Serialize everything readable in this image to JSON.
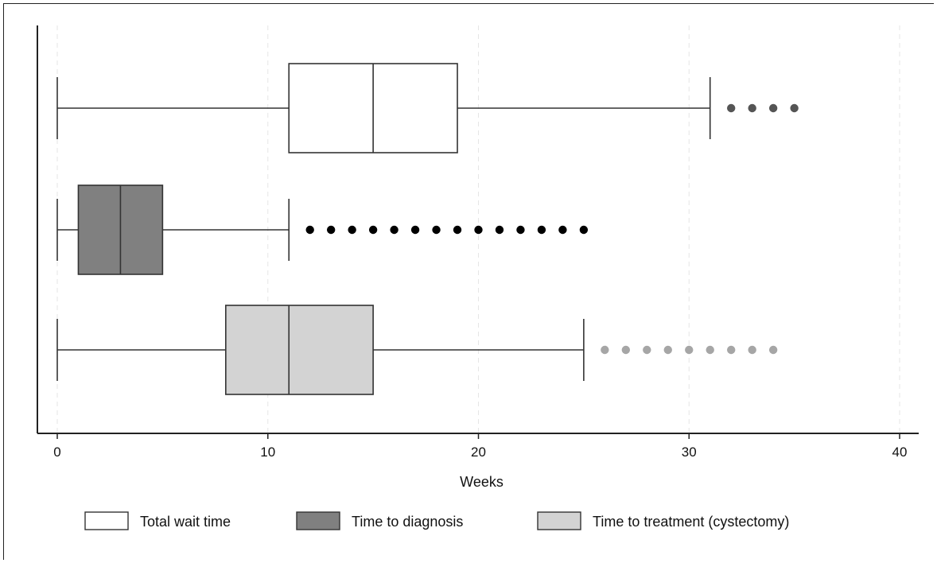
{
  "chart_data": {
    "type": "boxplot",
    "orientation": "horizontal",
    "xlabel": "Weeks",
    "xlim": [
      -0.9,
      41
    ],
    "xticks": [
      0,
      10,
      20,
      30,
      40
    ],
    "grid": "vertical dashed",
    "legend_position": "bottom",
    "series": [
      {
        "name": "Total wait time",
        "color": "#ffffff",
        "outlier_color": "#555555",
        "whisker_low": 0,
        "q1": 11,
        "median": 15,
        "q3": 19,
        "whisker_high": 31,
        "outliers": [
          32,
          33,
          34,
          35
        ]
      },
      {
        "name": "Time to diagnosis",
        "color": "#808080",
        "outlier_color": "#000000",
        "whisker_low": 0,
        "q1": 1,
        "median": 3,
        "q3": 5,
        "whisker_high": 11,
        "outliers": [
          12,
          13,
          14,
          15,
          16,
          17,
          18,
          19,
          20,
          21,
          22,
          23,
          24,
          25
        ]
      },
      {
        "name": "Time to treatment (cystectomy)",
        "color": "#d3d3d3",
        "outlier_color": "#a6a6a6",
        "whisker_low": 0,
        "q1": 8,
        "median": 11,
        "q3": 15,
        "whisker_high": 25,
        "outliers": [
          26,
          27,
          28,
          29,
          30,
          31,
          32,
          33,
          34
        ]
      }
    ]
  }
}
